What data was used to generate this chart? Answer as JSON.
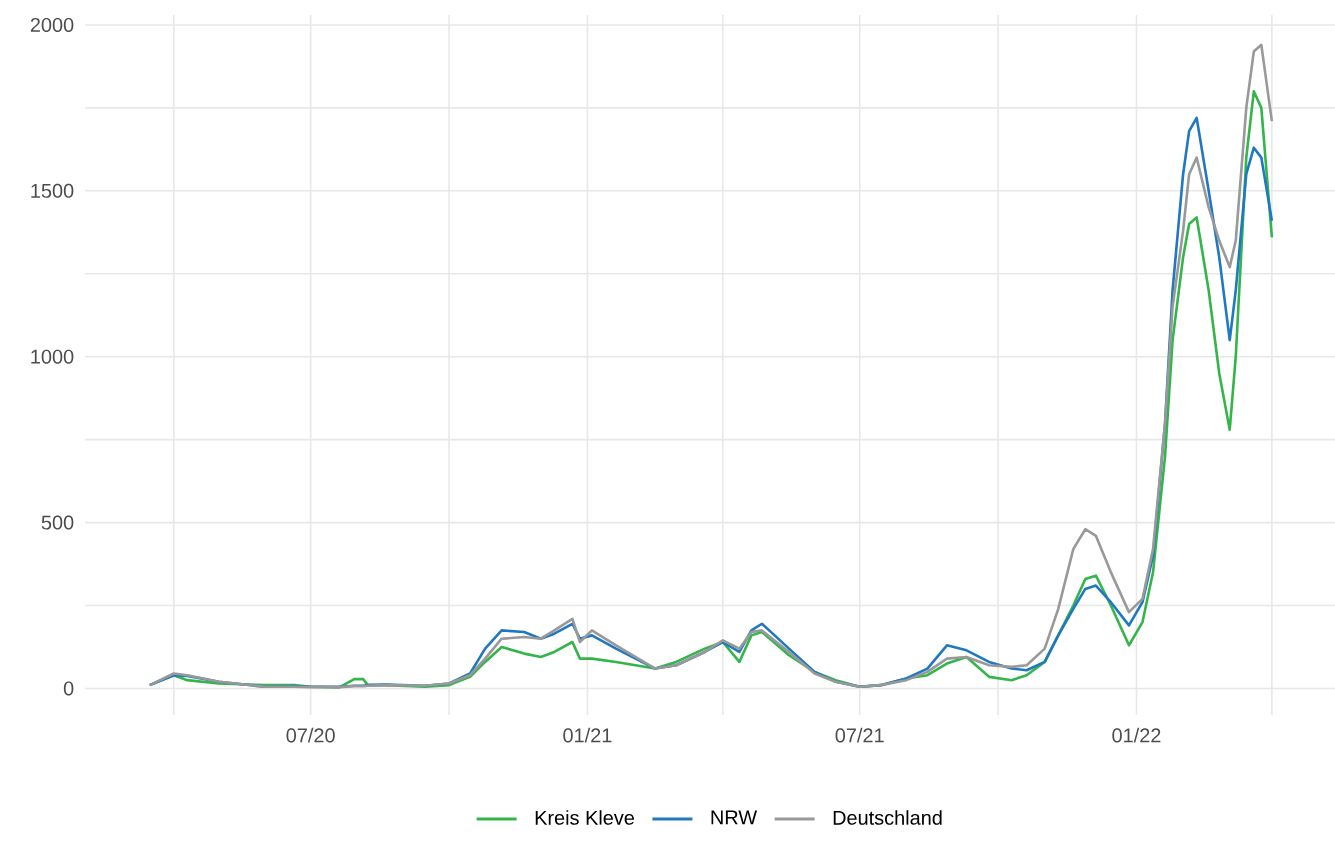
{
  "chart_data": {
    "type": "line",
    "x": [
      "2020-03-16",
      "2020-04-01",
      "2020-04-10",
      "2020-05-01",
      "2020-06-01",
      "2020-06-20",
      "2020-07-01",
      "2020-07-20",
      "2020-07-30",
      "2020-08-05",
      "2020-08-08",
      "2020-08-20",
      "2020-09-15",
      "2020-10-01",
      "2020-10-15",
      "2020-10-25",
      "2020-11-05",
      "2020-11-20",
      "2020-12-01",
      "2020-12-10",
      "2020-12-22",
      "2020-12-27",
      "2021-01-04",
      "2021-01-20",
      "2021-02-15",
      "2021-03-01",
      "2021-03-20",
      "2021-04-01",
      "2021-04-12",
      "2021-04-20",
      "2021-04-27",
      "2021-05-15",
      "2021-06-01",
      "2021-06-15",
      "2021-07-01",
      "2021-07-15",
      "2021-08-01",
      "2021-08-15",
      "2021-08-28",
      "2021-09-10",
      "2021-09-25",
      "2021-10-10",
      "2021-10-20",
      "2021-11-01",
      "2021-11-10",
      "2021-11-20",
      "2021-11-28",
      "2021-12-05",
      "2021-12-15",
      "2021-12-27",
      "2022-01-05",
      "2022-01-12",
      "2022-01-20",
      "2022-01-25",
      "2022-02-01",
      "2022-02-05",
      "2022-02-10",
      "2022-02-18",
      "2022-02-25",
      "2022-03-04",
      "2022-03-08",
      "2022-03-15",
      "2022-03-20",
      "2022-03-25",
      "2022-04-01"
    ],
    "series": [
      {
        "name": "Kreis Kleve",
        "color": "#33b54a",
        "values": [
          10,
          40,
          25,
          15,
          10,
          10,
          5,
          3,
          28,
          28,
          10,
          10,
          5,
          10,
          35,
          80,
          125,
          105,
          95,
          110,
          140,
          90,
          90,
          80,
          60,
          80,
          120,
          140,
          80,
          160,
          170,
          100,
          50,
          25,
          5,
          10,
          30,
          40,
          75,
          95,
          35,
          25,
          40,
          80,
          160,
          250,
          330,
          340,
          250,
          130,
          200,
          350,
          700,
          1050,
          1300,
          1400,
          1420,
          1200,
          950,
          780,
          1000,
          1600,
          1800,
          1750,
          1360
        ]
      },
      {
        "name": "NRW",
        "color": "#1f78c1",
        "values": [
          10,
          40,
          38,
          20,
          5,
          7,
          5,
          5,
          8,
          8,
          10,
          12,
          8,
          15,
          45,
          120,
          175,
          170,
          150,
          165,
          195,
          150,
          160,
          120,
          60,
          70,
          110,
          140,
          110,
          175,
          195,
          120,
          50,
          20,
          5,
          10,
          30,
          60,
          130,
          115,
          80,
          60,
          55,
          80,
          160,
          240,
          300,
          310,
          260,
          190,
          260,
          400,
          800,
          1200,
          1550,
          1680,
          1720,
          1500,
          1300,
          1050,
          1200,
          1550,
          1630,
          1600,
          1410
        ]
      },
      {
        "name": "Deutschland",
        "color": "#999999",
        "values": [
          10,
          45,
          40,
          20,
          5,
          5,
          4,
          4,
          7,
          7,
          8,
          10,
          8,
          15,
          40,
          90,
          150,
          155,
          150,
          175,
          210,
          140,
          175,
          130,
          60,
          70,
          110,
          145,
          120,
          170,
          175,
          110,
          45,
          20,
          5,
          10,
          25,
          50,
          90,
          95,
          70,
          65,
          70,
          120,
          240,
          420,
          480,
          460,
          350,
          230,
          270,
          420,
          800,
          1150,
          1380,
          1550,
          1600,
          1450,
          1350,
          1270,
          1350,
          1750,
          1920,
          1940,
          1710
        ]
      }
    ],
    "xlim": [
      "2020-02-02",
      "2022-05-13"
    ],
    "xticks": [
      {
        "value": "2020-04-01",
        "label": null
      },
      {
        "value": "2020-07-01",
        "label": "07/20"
      },
      {
        "value": "2020-10-01",
        "label": null
      },
      {
        "value": "2021-01-01",
        "label": "01/21"
      },
      {
        "value": "2021-04-01",
        "label": null
      },
      {
        "value": "2021-07-01",
        "label": "07/21"
      },
      {
        "value": "2021-10-01",
        "label": null
      },
      {
        "value": "2022-01-01",
        "label": "01/22"
      },
      {
        "value": "2022-04-01",
        "label": null
      }
    ],
    "ylim": [
      -80,
      2030
    ],
    "yticks": [
      0,
      {
        "value": 250,
        "label": null
      },
      500,
      {
        "value": 750,
        "label": null
      },
      1000,
      {
        "value": 1250,
        "label": null
      },
      1500,
      {
        "value": 1750,
        "label": null
      },
      2000
    ],
    "grid": true,
    "legend": "bottom",
    "line_style": "solid"
  }
}
